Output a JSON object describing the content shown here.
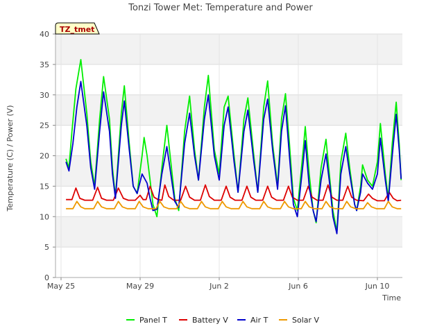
{
  "chart_data": {
    "type": "line",
    "title": "Tonzi Tower Met: Temperature and Power",
    "xlabel": "Time",
    "ylabel": "Temperature (C) / Power (V)",
    "badge": "TZ_tmet",
    "ylim": [
      0,
      40
    ],
    "xlim": [
      0,
      17.5
    ],
    "yticks": [
      0,
      5,
      10,
      15,
      20,
      25,
      30,
      35,
      40
    ],
    "xticks": [
      {
        "day": 0,
        "label": "May 25"
      },
      {
        "day": 4,
        "label": "May 29"
      },
      {
        "day": 8,
        "label": "Jun 2"
      },
      {
        "day": 12,
        "label": "Jun 6"
      },
      {
        "day": 16,
        "label": "Jun 10"
      }
    ],
    "x_units": "days since May 25",
    "series": [
      {
        "name": "Panel T",
        "color": "#00ee00",
        "points": [
          [
            0.25,
            19.5
          ],
          [
            0.4,
            18
          ],
          [
            0.55,
            24
          ],
          [
            0.75,
            31
          ],
          [
            1.0,
            35.8
          ],
          [
            1.3,
            27
          ],
          [
            1.5,
            19
          ],
          [
            1.7,
            15
          ],
          [
            1.95,
            26
          ],
          [
            2.15,
            33
          ],
          [
            2.45,
            26
          ],
          [
            2.6,
            18
          ],
          [
            2.75,
            13.2
          ],
          [
            3.05,
            27
          ],
          [
            3.2,
            31.5
          ],
          [
            3.45,
            22
          ],
          [
            3.65,
            15
          ],
          [
            3.85,
            13.8
          ],
          [
            4.1,
            20
          ],
          [
            4.2,
            23
          ],
          [
            4.35,
            20
          ],
          [
            4.5,
            16
          ],
          [
            4.65,
            12
          ],
          [
            4.85,
            10
          ],
          [
            5.1,
            18
          ],
          [
            5.35,
            25
          ],
          [
            5.55,
            19
          ],
          [
            5.75,
            13
          ],
          [
            5.95,
            11
          ],
          [
            6.25,
            24
          ],
          [
            6.5,
            29.8
          ],
          [
            6.75,
            21
          ],
          [
            6.95,
            16
          ],
          [
            7.25,
            28
          ],
          [
            7.45,
            33.2
          ],
          [
            7.75,
            21
          ],
          [
            8.0,
            17
          ],
          [
            8.25,
            28
          ],
          [
            8.45,
            29.8
          ],
          [
            8.75,
            20
          ],
          [
            8.95,
            14
          ],
          [
            9.25,
            26
          ],
          [
            9.45,
            29.5
          ],
          [
            9.75,
            20
          ],
          [
            9.95,
            14
          ],
          [
            10.25,
            28
          ],
          [
            10.45,
            32.3
          ],
          [
            10.7,
            22
          ],
          [
            10.95,
            15
          ],
          [
            11.15,
            26
          ],
          [
            11.35,
            30.2
          ],
          [
            11.55,
            22
          ],
          [
            11.75,
            13
          ],
          [
            11.95,
            11
          ],
          [
            12.25,
            21
          ],
          [
            12.35,
            24.8
          ],
          [
            12.55,
            17
          ],
          [
            12.75,
            11
          ],
          [
            12.9,
            9
          ],
          [
            13.15,
            18
          ],
          [
            13.4,
            22.7
          ],
          [
            13.6,
            16
          ],
          [
            13.75,
            11
          ],
          [
            13.95,
            7.5
          ],
          [
            14.15,
            19
          ],
          [
            14.4,
            23.7
          ],
          [
            14.6,
            18
          ],
          [
            14.85,
            12
          ],
          [
            14.95,
            11
          ],
          [
            15.15,
            15
          ],
          [
            15.25,
            18.5
          ],
          [
            15.5,
            16
          ],
          [
            15.75,
            15
          ],
          [
            16.0,
            19
          ],
          [
            16.15,
            25.3
          ],
          [
            16.4,
            17
          ],
          [
            16.55,
            13
          ],
          [
            16.75,
            22
          ],
          [
            16.95,
            28.8
          ],
          [
            17.1,
            22
          ],
          [
            17.2,
            16
          ]
        ]
      },
      {
        "name": "Battery V",
        "color": "#dd0000",
        "points": [
          [
            0.25,
            12.8
          ],
          [
            0.55,
            12.8
          ],
          [
            0.75,
            14.7
          ],
          [
            0.95,
            13
          ],
          [
            1.2,
            12.7
          ],
          [
            1.6,
            12.7
          ],
          [
            1.85,
            14.8
          ],
          [
            2.05,
            13
          ],
          [
            2.3,
            12.7
          ],
          [
            2.65,
            12.7
          ],
          [
            2.9,
            14.7
          ],
          [
            3.15,
            13
          ],
          [
            3.4,
            12.7
          ],
          [
            3.75,
            12.7
          ],
          [
            4.0,
            13.5
          ],
          [
            4.15,
            12.8
          ],
          [
            4.3,
            12.8
          ],
          [
            4.5,
            15
          ],
          [
            4.7,
            13.2
          ],
          [
            4.9,
            12.8
          ],
          [
            5.1,
            12.7
          ],
          [
            5.25,
            15.2
          ],
          [
            5.45,
            13.3
          ],
          [
            5.7,
            12.7
          ],
          [
            6.05,
            12.7
          ],
          [
            6.3,
            15
          ],
          [
            6.5,
            13.2
          ],
          [
            6.75,
            12.7
          ],
          [
            7.05,
            12.7
          ],
          [
            7.3,
            15.2
          ],
          [
            7.5,
            13.3
          ],
          [
            7.75,
            12.7
          ],
          [
            8.1,
            12.7
          ],
          [
            8.35,
            15
          ],
          [
            8.55,
            13.2
          ],
          [
            8.8,
            12.7
          ],
          [
            9.15,
            12.7
          ],
          [
            9.4,
            15
          ],
          [
            9.6,
            13.2
          ],
          [
            9.85,
            12.7
          ],
          [
            10.2,
            12.7
          ],
          [
            10.45,
            15
          ],
          [
            10.65,
            13.2
          ],
          [
            10.9,
            12.7
          ],
          [
            11.25,
            12.7
          ],
          [
            11.5,
            15
          ],
          [
            11.7,
            13.2
          ],
          [
            11.95,
            12.7
          ],
          [
            12.25,
            12.7
          ],
          [
            12.5,
            15
          ],
          [
            12.7,
            13.2
          ],
          [
            12.95,
            12.7
          ],
          [
            13.25,
            12.7
          ],
          [
            13.5,
            15.2
          ],
          [
            13.7,
            13.2
          ],
          [
            13.95,
            12.7
          ],
          [
            14.25,
            12.7
          ],
          [
            14.5,
            15
          ],
          [
            14.7,
            13.2
          ],
          [
            14.95,
            12.7
          ],
          [
            15.3,
            12.6
          ],
          [
            15.55,
            13.7
          ],
          [
            15.75,
            13
          ],
          [
            16.0,
            12.6
          ],
          [
            16.35,
            12.6
          ],
          [
            16.6,
            14
          ],
          [
            16.8,
            13
          ],
          [
            17.0,
            12.6
          ],
          [
            17.2,
            12.7
          ]
        ]
      },
      {
        "name": "Air T",
        "color": "#0000cc",
        "points": [
          [
            0.25,
            19
          ],
          [
            0.4,
            17.5
          ],
          [
            0.6,
            22
          ],
          [
            0.8,
            28
          ],
          [
            1.0,
            32.2
          ],
          [
            1.3,
            25
          ],
          [
            1.5,
            18
          ],
          [
            1.7,
            14.5
          ],
          [
            1.95,
            24
          ],
          [
            2.15,
            30.5
          ],
          [
            2.45,
            24
          ],
          [
            2.6,
            17
          ],
          [
            2.75,
            13
          ],
          [
            3.05,
            25
          ],
          [
            3.2,
            29
          ],
          [
            3.45,
            21
          ],
          [
            3.65,
            15
          ],
          [
            3.85,
            13.8
          ],
          [
            4.1,
            17
          ],
          [
            4.35,
            15.5
          ],
          [
            4.5,
            13
          ],
          [
            4.65,
            11
          ],
          [
            4.85,
            11.2
          ],
          [
            5.1,
            17
          ],
          [
            5.35,
            21.5
          ],
          [
            5.55,
            17
          ],
          [
            5.75,
            12.5
          ],
          [
            5.95,
            11.5
          ],
          [
            6.25,
            22
          ],
          [
            6.5,
            27
          ],
          [
            6.75,
            20
          ],
          [
            6.95,
            16
          ],
          [
            7.25,
            26
          ],
          [
            7.45,
            30
          ],
          [
            7.75,
            20
          ],
          [
            8.0,
            16
          ],
          [
            8.25,
            25
          ],
          [
            8.45,
            28
          ],
          [
            8.75,
            19
          ],
          [
            8.95,
            14
          ],
          [
            9.25,
            24
          ],
          [
            9.45,
            27.5
          ],
          [
            9.75,
            19
          ],
          [
            9.95,
            14
          ],
          [
            10.25,
            26
          ],
          [
            10.45,
            29.3
          ],
          [
            10.7,
            21
          ],
          [
            10.95,
            14.5
          ],
          [
            11.15,
            24
          ],
          [
            11.35,
            28.2
          ],
          [
            11.55,
            20
          ],
          [
            11.75,
            12
          ],
          [
            11.95,
            10
          ],
          [
            12.25,
            19
          ],
          [
            12.35,
            22.5
          ],
          [
            12.55,
            15
          ],
          [
            12.75,
            11
          ],
          [
            12.9,
            9.2
          ],
          [
            13.15,
            16
          ],
          [
            13.4,
            20.3
          ],
          [
            13.6,
            15
          ],
          [
            13.75,
            10
          ],
          [
            13.95,
            7.2
          ],
          [
            14.15,
            17
          ],
          [
            14.4,
            21.5
          ],
          [
            14.6,
            17
          ],
          [
            14.85,
            12
          ],
          [
            14.95,
            11
          ],
          [
            15.15,
            14
          ],
          [
            15.25,
            17
          ],
          [
            15.5,
            15.5
          ],
          [
            15.75,
            14.5
          ],
          [
            16.0,
            17
          ],
          [
            16.15,
            22.9
          ],
          [
            16.4,
            16
          ],
          [
            16.55,
            12.5
          ],
          [
            16.75,
            20
          ],
          [
            16.95,
            26.8
          ],
          [
            17.1,
            21
          ],
          [
            17.2,
            16.2
          ]
        ]
      },
      {
        "name": "Solar V",
        "color": "#ee9900",
        "points": [
          [
            0.25,
            11.3
          ],
          [
            0.6,
            11.3
          ],
          [
            0.8,
            12.5
          ],
          [
            1.0,
            11.6
          ],
          [
            1.2,
            11.3
          ],
          [
            1.65,
            11.3
          ],
          [
            1.85,
            12.5
          ],
          [
            2.05,
            11.6
          ],
          [
            2.3,
            11.3
          ],
          [
            2.7,
            11.3
          ],
          [
            2.9,
            12.5
          ],
          [
            3.1,
            11.6
          ],
          [
            3.35,
            11.3
          ],
          [
            3.75,
            11.3
          ],
          [
            3.95,
            12.5
          ],
          [
            4.15,
            11.6
          ],
          [
            4.4,
            11.3
          ],
          [
            4.8,
            11.3
          ],
          [
            5.0,
            12.5
          ],
          [
            5.2,
            11.6
          ],
          [
            5.45,
            11.3
          ],
          [
            5.85,
            11.3
          ],
          [
            6.05,
            12.5
          ],
          [
            6.25,
            11.6
          ],
          [
            6.5,
            11.3
          ],
          [
            6.9,
            11.3
          ],
          [
            7.1,
            12.5
          ],
          [
            7.3,
            11.6
          ],
          [
            7.55,
            11.3
          ],
          [
            7.95,
            11.3
          ],
          [
            8.15,
            12.5
          ],
          [
            8.35,
            11.6
          ],
          [
            8.6,
            11.3
          ],
          [
            9.0,
            11.3
          ],
          [
            9.2,
            12.5
          ],
          [
            9.4,
            11.6
          ],
          [
            9.65,
            11.3
          ],
          [
            10.05,
            11.3
          ],
          [
            10.25,
            12.5
          ],
          [
            10.45,
            11.6
          ],
          [
            10.7,
            11.3
          ],
          [
            11.1,
            11.3
          ],
          [
            11.3,
            12.5
          ],
          [
            11.5,
            11.6
          ],
          [
            11.75,
            11.3
          ],
          [
            12.15,
            11.3
          ],
          [
            12.35,
            12.5
          ],
          [
            12.55,
            11.6
          ],
          [
            12.8,
            11.3
          ],
          [
            13.2,
            11.3
          ],
          [
            13.4,
            12.5
          ],
          [
            13.6,
            11.6
          ],
          [
            13.85,
            11.3
          ],
          [
            14.25,
            11.3
          ],
          [
            14.45,
            12.5
          ],
          [
            14.65,
            11.6
          ],
          [
            14.9,
            11.3
          ],
          [
            15.3,
            11.3
          ],
          [
            15.5,
            12.3
          ],
          [
            15.7,
            11.6
          ],
          [
            15.95,
            11.3
          ],
          [
            16.35,
            11.3
          ],
          [
            16.55,
            12.5
          ],
          [
            16.75,
            11.6
          ],
          [
            17.0,
            11.3
          ],
          [
            17.2,
            11.3
          ]
        ]
      }
    ]
  }
}
